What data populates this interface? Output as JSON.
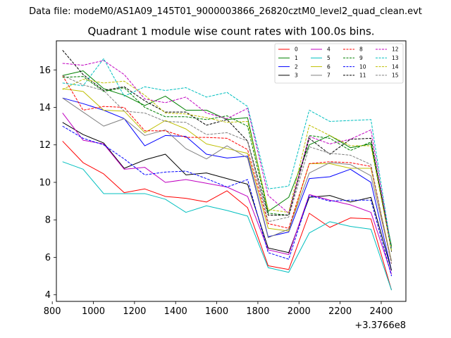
{
  "figure": {
    "suptitle": "Data file: modeM0/AS1A09_145T01_9000003866_26820cztM0_level2_quad_clean.evt"
  },
  "chart_data": {
    "type": "line",
    "title": "Quadrant 1 module wise count rates with 100.0s bins.",
    "xlabel": "",
    "ylabel": "",
    "x_offset_label": "+3.3766e8",
    "xlim": [
      820,
      2520
    ],
    "ylim": [
      3.65,
      17.55
    ],
    "xticks": [
      800,
      1000,
      1200,
      1400,
      1600,
      1800,
      2000,
      2200,
      2400
    ],
    "yticks": [
      4,
      6,
      8,
      10,
      12,
      14,
      16
    ],
    "grid": false,
    "legend": {
      "location": "top-right",
      "columns": 4
    },
    "x": [
      850,
      950,
      1050,
      1150,
      1250,
      1350,
      1450,
      1550,
      1650,
      1750,
      1850,
      1950,
      2050,
      2150,
      2250,
      2350,
      2450
    ],
    "series": [
      {
        "name": "0",
        "color": "#ff0000",
        "style": "solid",
        "values": [
          12.2,
          11.05,
          10.45,
          9.45,
          9.65,
          9.25,
          9.15,
          8.95,
          9.55,
          8.65,
          5.55,
          5.35,
          8.35,
          7.6,
          8.1,
          8.05,
          4.25
        ]
      },
      {
        "name": "1",
        "color": "#008000",
        "style": "solid",
        "values": [
          15.7,
          15.95,
          15.0,
          14.65,
          14.1,
          14.6,
          13.85,
          13.85,
          13.35,
          13.45,
          8.45,
          9.2,
          12.0,
          12.5,
          11.85,
          12.05,
          6.6
        ]
      },
      {
        "name": "2",
        "color": "#0000ff",
        "style": "solid",
        "values": [
          14.5,
          14.2,
          13.85,
          13.4,
          11.95,
          12.5,
          12.45,
          11.5,
          11.3,
          11.4,
          7.1,
          7.35,
          10.2,
          10.3,
          10.7,
          10.0,
          5.3
        ]
      },
      {
        "name": "3",
        "color": "#000000",
        "style": "solid",
        "values": [
          13.2,
          12.55,
          12.1,
          10.75,
          11.2,
          11.5,
          10.4,
          10.5,
          10.2,
          9.9,
          6.5,
          6.25,
          9.2,
          9.3,
          8.95,
          9.2,
          5.3
        ]
      },
      {
        "name": "4",
        "color": "#c000c0",
        "style": "solid",
        "values": [
          13.7,
          12.25,
          12.05,
          10.7,
          10.8,
          10.0,
          10.15,
          9.95,
          9.75,
          9.25,
          6.4,
          6.15,
          9.35,
          9.05,
          8.8,
          8.4,
          5.1
        ]
      },
      {
        "name": "5",
        "color": "#00bfbf",
        "style": "solid",
        "values": [
          11.1,
          10.7,
          9.4,
          9.4,
          9.4,
          9.1,
          8.4,
          8.75,
          8.5,
          8.2,
          5.45,
          5.2,
          7.3,
          7.9,
          7.65,
          7.5,
          4.25
        ]
      },
      {
        "name": "6",
        "color": "#bfbf00",
        "style": "solid",
        "values": [
          15.0,
          14.85,
          13.85,
          13.8,
          12.65,
          13.3,
          12.85,
          12.05,
          11.8,
          11.55,
          7.55,
          7.4,
          11.0,
          11.0,
          10.75,
          10.75,
          5.8
        ]
      },
      {
        "name": "7",
        "color": "#808080",
        "style": "solid",
        "values": [
          14.5,
          13.75,
          13.0,
          13.4,
          12.5,
          12.8,
          11.8,
          11.25,
          11.95,
          11.3,
          7.05,
          7.5,
          10.5,
          11.05,
          10.95,
          10.35,
          5.8
        ]
      },
      {
        "name": "8",
        "color": "#ff0000",
        "style": "dashed",
        "values": [
          15.7,
          13.85,
          14.05,
          14.0,
          12.75,
          12.75,
          12.4,
          12.4,
          12.35,
          11.75,
          7.8,
          7.55,
          11.0,
          11.1,
          11.05,
          10.85,
          5.65
        ]
      },
      {
        "name": "9",
        "color": "#008000",
        "style": "dashed",
        "values": [
          15.6,
          15.65,
          14.85,
          15.05,
          14.0,
          13.5,
          13.5,
          13.35,
          13.55,
          13.0,
          8.35,
          8.25,
          12.5,
          12.35,
          11.7,
          12.15,
          6.5
        ]
      },
      {
        "name": "10",
        "color": "#0000ff",
        "style": "dashed",
        "values": [
          13.0,
          12.35,
          12.0,
          11.25,
          10.4,
          10.55,
          10.6,
          10.2,
          9.75,
          10.15,
          6.25,
          5.9,
          9.3,
          9.0,
          9.05,
          9.05,
          5.0
        ]
      },
      {
        "name": "11",
        "color": "#000000",
        "style": "dashed",
        "values": [
          17.05,
          15.75,
          14.9,
          15.1,
          14.35,
          13.75,
          13.75,
          13.05,
          13.35,
          12.2,
          8.25,
          8.25,
          12.35,
          11.5,
          12.3,
          12.35,
          6.3
        ]
      },
      {
        "name": "12",
        "color": "#c000c0",
        "style": "dashed",
        "values": [
          16.35,
          16.25,
          16.5,
          15.75,
          14.45,
          14.25,
          14.55,
          13.7,
          13.4,
          13.95,
          9.3,
          8.35,
          12.45,
          12.05,
          12.3,
          12.8,
          6.4
        ]
      },
      {
        "name": "13",
        "color": "#00bfbf",
        "style": "dashed",
        "values": [
          15.3,
          15.15,
          16.6,
          14.6,
          15.1,
          14.9,
          15.05,
          14.55,
          14.8,
          14.05,
          9.65,
          9.8,
          13.85,
          13.25,
          13.3,
          13.35,
          6.4
        ]
      },
      {
        "name": "14",
        "color": "#bfbf00",
        "style": "dashed",
        "values": [
          14.95,
          15.5,
          15.3,
          15.4,
          14.65,
          13.7,
          13.65,
          13.45,
          13.2,
          13.25,
          8.55,
          8.4,
          13.05,
          12.5,
          11.95,
          11.95,
          6.35
        ]
      },
      {
        "name": "15",
        "color": "#808080",
        "style": "dashed",
        "values": [
          15.7,
          15.2,
          14.9,
          13.8,
          13.7,
          13.25,
          13.2,
          12.55,
          12.65,
          12.2,
          7.9,
          8.15,
          11.9,
          11.55,
          11.45,
          10.95,
          5.65
        ]
      }
    ]
  }
}
